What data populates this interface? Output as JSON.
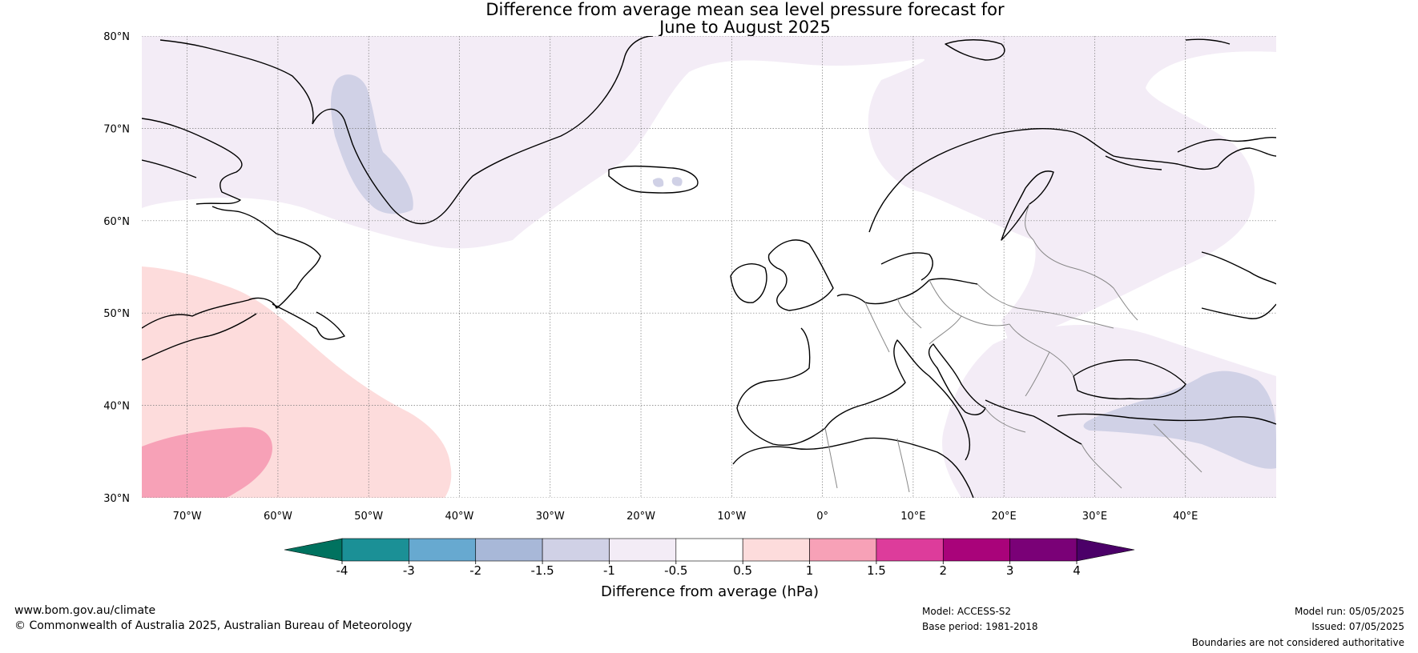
{
  "title_line1": "Difference from average mean sea level pressure forecast for",
  "title_line2": "June to August 2025",
  "map": {
    "lon_range": [
      -75,
      50
    ],
    "lat_range": [
      30,
      80
    ],
    "lat_ticks": [
      {
        "value": 80,
        "label": "80°N"
      },
      {
        "value": 70,
        "label": "70°N"
      },
      {
        "value": 60,
        "label": "60°N"
      },
      {
        "value": 50,
        "label": "50°N"
      },
      {
        "value": 40,
        "label": "40°N"
      },
      {
        "value": 30,
        "label": "30°N"
      }
    ],
    "lon_ticks": [
      {
        "value": -70,
        "label": "70°W"
      },
      {
        "value": -60,
        "label": "60°W"
      },
      {
        "value": -50,
        "label": "50°W"
      },
      {
        "value": -40,
        "label": "40°W"
      },
      {
        "value": -30,
        "label": "30°W"
      },
      {
        "value": -20,
        "label": "20°W"
      },
      {
        "value": -10,
        "label": "10°W"
      },
      {
        "value": 0,
        "label": "0°"
      },
      {
        "value": 10,
        "label": "10°E"
      },
      {
        "value": 20,
        "label": "20°E"
      },
      {
        "value": 30,
        "label": "30°E"
      },
      {
        "value": 40,
        "label": "40°E"
      }
    ]
  },
  "colorbar": {
    "label": "Difference from average (hPa)",
    "ticks": [
      "-4",
      "-3",
      "-2",
      "-1.5",
      "-1",
      "-0.5",
      "0.5",
      "1",
      "1.5",
      "2",
      "3",
      "4"
    ],
    "low_extend_color": "#00725f",
    "high_extend_color": "#4b0068",
    "colors": [
      "#1b9096",
      "#67a9d0",
      "#a8b8d8",
      "#d0d1e6",
      "#f3ecf6",
      "#ffffff",
      "#fddcdc",
      "#f7a1b7",
      "#dd3c9b",
      "#a9037a",
      "#7a0177"
    ]
  },
  "fields": {
    "neg_light_color": "#f3ecf6",
    "neg_medium_color": "#d0d1e6",
    "pos_light_color": "#fddcdc",
    "pos_medium_color": "#f7a1b7"
  },
  "footer": {
    "website": "www.bom.gov.au/climate",
    "copyright": "© Commonwealth of Australia 2025, Australian Bureau of Meteorology",
    "model": "Model: ACCESS-S2",
    "base_period": "Base period: 1981-2018",
    "model_run": "Model run: 05/05/2025",
    "issued": "Issued: 07/05/2025",
    "disclaimer": "Boundaries are not considered authoritative"
  }
}
